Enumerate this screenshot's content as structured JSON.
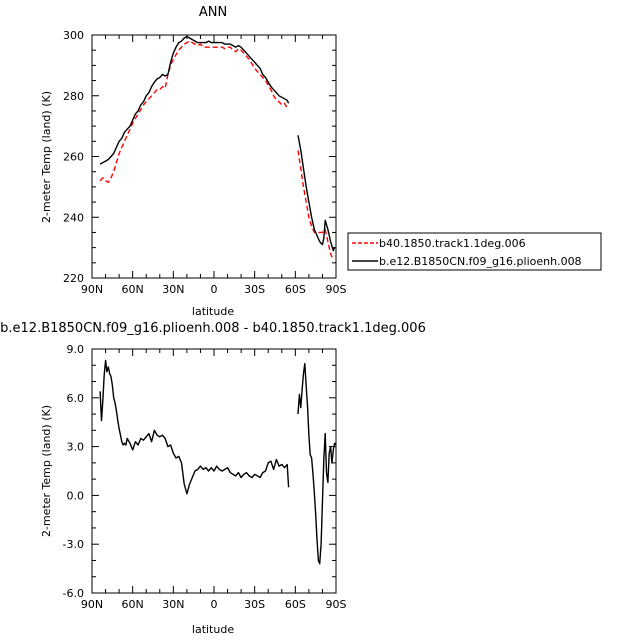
{
  "chart_data": [
    {
      "type": "line",
      "title": "ANN",
      "xlabel": "latitude",
      "ylabel": "2-meter Temp (land) (K)",
      "xlim": [
        90,
        -90
      ],
      "ylim": [
        220,
        300
      ],
      "x_ticks": [
        "90N",
        "60N",
        "30N",
        "0",
        "30S",
        "60S",
        "90S"
      ],
      "y_ticks": [
        "220",
        "240",
        "260",
        "280",
        "300"
      ],
      "legend_position": "right",
      "series": [
        {
          "name": "b40.1850.track1.1deg.006",
          "color": "#ff0000",
          "dash": "dashed",
          "segments": [
            {
              "x": [
                84,
                82,
                80,
                78,
                76,
                74,
                72,
                70,
                68,
                66,
                64,
                62,
                60,
                58,
                56,
                54,
                52,
                50,
                48,
                46,
                44,
                42,
                40,
                38,
                36,
                34,
                32,
                30,
                28,
                26,
                24,
                22,
                20,
                18,
                16,
                14,
                12,
                10,
                8,
                6,
                4,
                2,
                0,
                -2,
                -4,
                -6,
                -8,
                -10,
                -12,
                -14,
                -16,
                -18,
                -20,
                -22,
                -24,
                -26,
                -28,
                -30,
                -32,
                -34,
                -36,
                -38,
                -40,
                -42,
                -44,
                -46,
                -48,
                -50,
                -52,
                -54,
                -55
              ],
              "y": [
                252,
                253,
                252,
                251.5,
                253,
                255,
                258,
                261,
                263,
                265,
                267,
                269,
                271,
                272.5,
                274,
                275.5,
                277,
                278,
                279,
                280,
                281,
                282,
                282,
                283,
                282.5,
                287,
                290,
                292,
                293.5,
                295,
                296,
                297,
                297.5,
                298,
                297.5,
                297,
                296.5,
                297,
                296,
                296,
                296,
                296,
                296,
                296,
                296,
                296,
                295.5,
                296,
                296,
                295,
                294.5,
                295.5,
                295,
                294,
                293,
                292,
                290.5,
                289,
                288,
                287,
                286,
                285,
                283.5,
                282,
                280,
                278.5,
                278,
                277,
                277.5,
                276,
                276
              ]
            },
            {
              "x": [
                -62,
                -64,
                -66,
                -68,
                -70,
                -72,
                -74,
                -76,
                -78,
                -80,
                -82,
                -84,
                -86,
                -88
              ],
              "y": [
                262,
                256,
                250,
                245,
                240,
                237,
                235,
                235,
                235,
                235,
                236,
                232,
                228,
                226
              ]
            }
          ]
        },
        {
          "name": "b.e12.B1850CN.f09_g16.plioenh.008",
          "color": "#000000",
          "dash": "solid",
          "segments": [
            {
              "x": [
                84,
                82,
                80,
                78,
                76,
                74,
                72,
                70,
                68,
                66,
                64,
                62,
                60,
                58,
                56,
                54,
                52,
                50,
                48,
                46,
                44,
                42,
                40,
                38,
                36,
                34,
                32,
                30,
                28,
                26,
                24,
                22,
                20,
                18,
                16,
                14,
                12,
                10,
                8,
                6,
                4,
                2,
                0,
                -2,
                -4,
                -6,
                -8,
                -10,
                -12,
                -14,
                -16,
                -18,
                -20,
                -22,
                -24,
                -26,
                -28,
                -30,
                -32,
                -34,
                -36,
                -38,
                -40,
                -42,
                -44,
                -46,
                -48,
                -50,
                -52,
                -54,
                -55
              ],
              "y": [
                257.5,
                258,
                258.5,
                259,
                260,
                261,
                263,
                265,
                266,
                268,
                269,
                270,
                272,
                274,
                275,
                277,
                278,
                280,
                281,
                283,
                284.5,
                285.5,
                286,
                287,
                286.5,
                287,
                291,
                294,
                296,
                297.5,
                298,
                299,
                299.5,
                299,
                298.5,
                298,
                297.5,
                297.5,
                297.5,
                297.5,
                298,
                297.5,
                297.5,
                297.5,
                297.5,
                297.5,
                297,
                297,
                297,
                296.5,
                296,
                296.5,
                296,
                295,
                294,
                293,
                292,
                291,
                290,
                289,
                287,
                286,
                284.5,
                283,
                282,
                281,
                280,
                279.5,
                279,
                278.5,
                277.5
              ]
            },
            {
              "x": [
                -62,
                -64,
                -66,
                -68,
                -70,
                -72,
                -74,
                -76,
                -78,
                -80,
                -81,
                -82,
                -84,
                -86,
                -88,
                -89
              ],
              "y": [
                267,
                262,
                256,
                250,
                245,
                240,
                236,
                234,
                232,
                231,
                233,
                239,
                236,
                232,
                229,
                230
              ]
            }
          ]
        }
      ]
    },
    {
      "type": "line",
      "title": "b.e12.B1850CN.f09_g16.plioenh.008 - b40.1850.track1.1deg.006",
      "xlabel": "latitude",
      "ylabel": "2-meter Temp (land) (K)",
      "xlim": [
        90,
        -90
      ],
      "ylim": [
        -6,
        9
      ],
      "x_ticks": [
        "90N",
        "60N",
        "30N",
        "0",
        "30S",
        "60S",
        "90S"
      ],
      "y_ticks": [
        "-6.0",
        "-3.0",
        "0.0",
        "3.0",
        "6.0",
        "9.0"
      ],
      "series": [
        {
          "color": "#000000",
          "dash": "solid",
          "segments": [
            {
              "x": [
                84,
                83,
                82,
                81,
                80,
                79,
                78,
                77,
                76,
                75,
                74,
                73,
                72,
                71,
                70,
                69,
                68,
                67,
                66,
                65,
                64,
                62,
                60,
                58,
                56,
                54,
                52,
                50,
                48,
                46,
                44,
                42,
                40,
                38,
                36,
                34,
                32,
                30,
                28,
                26,
                24,
                22,
                20,
                18,
                16,
                14,
                12,
                10,
                8,
                6,
                4,
                2,
                0,
                -2,
                -4,
                -6,
                -8,
                -10,
                -12,
                -14,
                -16,
                -18,
                -20,
                -22,
                -24,
                -26,
                -28,
                -30,
                -32,
                -34,
                -36,
                -38,
                -40,
                -42,
                -44,
                -46,
                -48,
                -50,
                -52,
                -54,
                -55
              ],
              "y": [
                6.4,
                4.6,
                5.8,
                7.4,
                8.3,
                7.6,
                7.9,
                7.5,
                7.3,
                6.8,
                6.0,
                5.7,
                5.2,
                4.6,
                4.1,
                3.7,
                3.3,
                3.1,
                3.2,
                3.1,
                3.5,
                3.2,
                2.8,
                3.3,
                3.1,
                3.5,
                3.4,
                3.6,
                3.8,
                3.3,
                4.0,
                3.7,
                3.6,
                3.7,
                3.5,
                3.0,
                3.1,
                2.6,
                2.3,
                2.4,
                2.0,
                0.7,
                0.1,
                0.7,
                1.1,
                1.5,
                1.6,
                1.8,
                1.6,
                1.7,
                1.5,
                1.7,
                1.5,
                1.8,
                1.6,
                1.5,
                1.6,
                1.7,
                1.4,
                1.3,
                1.2,
                1.4,
                1.1,
                1.3,
                1.4,
                1.2,
                1.1,
                1.3,
                1.2,
                1.1,
                1.4,
                1.5,
                2.0,
                2.1,
                1.6,
                2.2,
                1.8,
                1.9,
                1.7,
                1.9,
                0.5
              ]
            },
            {
              "x": [
                -62,
                -63,
                -64,
                -65,
                -66,
                -67,
                -68,
                -69,
                -70,
                -71,
                -72,
                -73,
                -74,
                -75,
                -76,
                -77,
                -78,
                -79,
                -80,
                -81,
                -82,
                -83,
                -84,
                -85,
                -86,
                -87,
                -88,
                -89,
                -90
              ],
              "y": [
                5.0,
                6.2,
                5.4,
                6.5,
                7.5,
                8.1,
                6.7,
                5.5,
                3.7,
                2.5,
                2.3,
                1.3,
                0.2,
                -1.2,
                -2.7,
                -4.0,
                -4.2,
                -3.0,
                -0.5,
                2.2,
                3.8,
                1.4,
                0.8,
                2.6,
                3.0,
                2.0,
                2.8,
                3.2,
                3.1
              ]
            }
          ]
        }
      ]
    }
  ]
}
